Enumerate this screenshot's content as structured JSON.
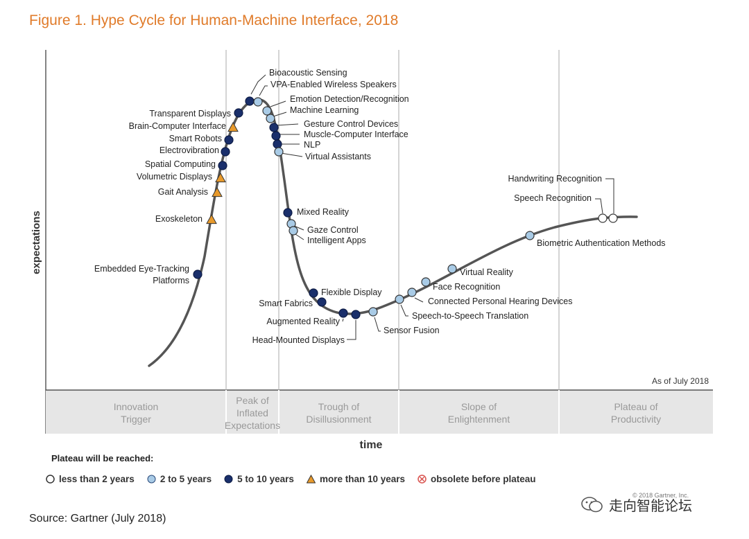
{
  "title": "Figure 1. Hype Cycle for Human-Machine Interface, 2018",
  "chart_data": {
    "type": "line",
    "title": "Figure 1. Hype Cycle for Human-Machine Interface, 2018",
    "xlabel": "time",
    "ylabel": "expectations",
    "as_of": "As of July 2018",
    "phases": [
      {
        "label1": "Innovation",
        "label2": "Trigger",
        "label3": ""
      },
      {
        "label1": "Peak of",
        "label2": "Inflated",
        "label3": "Expectations"
      },
      {
        "label1": "Trough of",
        "label2": "Disillusionment",
        "label3": ""
      },
      {
        "label1": "Slope of",
        "label2": "Enlightenment",
        "label3": ""
      },
      {
        "label1": "Plateau of",
        "label2": "Productivity",
        "label3": ""
      }
    ],
    "technologies": [
      {
        "name": "Embedded Eye-Tracking Platforms",
        "phase": "Innovation Trigger",
        "plateau": "5 to 10 years"
      },
      {
        "name": "Exoskeleton",
        "phase": "Innovation Trigger",
        "plateau": "more than 10 years"
      },
      {
        "name": "Gait Analysis",
        "phase": "Innovation Trigger",
        "plateau": "more than 10 years"
      },
      {
        "name": "Volumetric Displays",
        "phase": "Innovation Trigger",
        "plateau": "more than 10 years"
      },
      {
        "name": "Spatial Computing",
        "phase": "Innovation Trigger",
        "plateau": "5 to 10 years"
      },
      {
        "name": "Electrovibration",
        "phase": "Innovation Trigger",
        "plateau": "5 to 10 years"
      },
      {
        "name": "Smart Robots",
        "phase": "Innovation Trigger",
        "plateau": "5 to 10 years"
      },
      {
        "name": "Brain-Computer Interface",
        "phase": "Innovation Trigger",
        "plateau": "more than 10 years"
      },
      {
        "name": "Transparent Displays",
        "phase": "Peak of Inflated Expectations",
        "plateau": "5 to 10 years"
      },
      {
        "name": "Bioacoustic Sensing",
        "phase": "Peak of Inflated Expectations",
        "plateau": "5 to 10 years"
      },
      {
        "name": "VPA-Enabled Wireless Speakers",
        "phase": "Peak of Inflated Expectations",
        "plateau": "2 to 5 years"
      },
      {
        "name": "Emotion Detection/Recognition",
        "phase": "Peak of Inflated Expectations",
        "plateau": "2 to 5 years"
      },
      {
        "name": "Machine Learning",
        "phase": "Peak of Inflated Expectations",
        "plateau": "2 to 5 years"
      },
      {
        "name": "Gesture Control Devices",
        "phase": "Peak of Inflated Expectations",
        "plateau": "5 to 10 years"
      },
      {
        "name": "Muscle-Computer Interface",
        "phase": "Peak of Inflated Expectations",
        "plateau": "5 to 10 years"
      },
      {
        "name": "NLP",
        "phase": "Peak of Inflated Expectations",
        "plateau": "5 to 10 years"
      },
      {
        "name": "Virtual Assistants",
        "phase": "Peak of Inflated Expectations",
        "plateau": "2 to 5 years"
      },
      {
        "name": "Mixed Reality",
        "phase": "Trough of Disillusionment",
        "plateau": "5 to 10 years"
      },
      {
        "name": "Gaze Control",
        "phase": "Trough of Disillusionment",
        "plateau": "2 to 5 years"
      },
      {
        "name": "Intelligent Apps",
        "phase": "Trough of Disillusionment",
        "plateau": "2 to 5 years"
      },
      {
        "name": "Flexible Display",
        "phase": "Trough of Disillusionment",
        "plateau": "5 to 10 years"
      },
      {
        "name": "Smart Fabrics",
        "phase": "Trough of Disillusionment",
        "plateau": "5 to 10 years"
      },
      {
        "name": "Augmented Reality",
        "phase": "Trough of Disillusionment",
        "plateau": "5 to 10 years"
      },
      {
        "name": "Head-Mounted Displays",
        "phase": "Trough of Disillusionment",
        "plateau": "5 to 10 years"
      },
      {
        "name": "Sensor Fusion",
        "phase": "Trough of Disillusionment",
        "plateau": "2 to 5 years"
      },
      {
        "name": "Speech-to-Speech Translation",
        "phase": "Slope of Enlightenment",
        "plateau": "2 to 5 years"
      },
      {
        "name": "Connected Personal Hearing Devices",
        "phase": "Slope of Enlightenment",
        "plateau": "2 to 5 years"
      },
      {
        "name": "Face Recognition",
        "phase": "Slope of Enlightenment",
        "plateau": "2 to 5 years"
      },
      {
        "name": "Virtual Reality",
        "phase": "Slope of Enlightenment",
        "plateau": "2 to 5 years"
      },
      {
        "name": "Biometric Authentication Methods",
        "phase": "Slope of Enlightenment",
        "plateau": "2 to 5 years"
      },
      {
        "name": "Speech Recognition",
        "phase": "Slope of Enlightenment",
        "plateau": "less than 2 years"
      },
      {
        "name": "Handwriting Recognition",
        "phase": "Slope of Enlightenment",
        "plateau": "less than 2 years"
      }
    ]
  },
  "legend": {
    "title": "Plateau will be reached:",
    "items": [
      {
        "label": "less than 2 years",
        "symbol": "white-circle",
        "color": "#ffffff"
      },
      {
        "label": "2 to 5 years",
        "symbol": "light-blue-circle",
        "color": "#a9cbe6"
      },
      {
        "label": "5 to 10 years",
        "symbol": "dark-blue-circle",
        "color": "#1a2f6b"
      },
      {
        "label": "more than 10 years",
        "symbol": "orange-triangle",
        "color": "#e89a2c"
      },
      {
        "label": "obsolete before plateau",
        "symbol": "cross-circle",
        "color": "#d9534f"
      }
    ]
  },
  "source": "Source: Gartner (July 2018)",
  "copyright": "© 2018 Gartner, Inc.",
  "watermark": "走向智能论坛",
  "colors": {
    "title": "#e07b2a",
    "curve": "#555555",
    "phase_band": "#e6e6e6",
    "phase_text": "#999999"
  }
}
